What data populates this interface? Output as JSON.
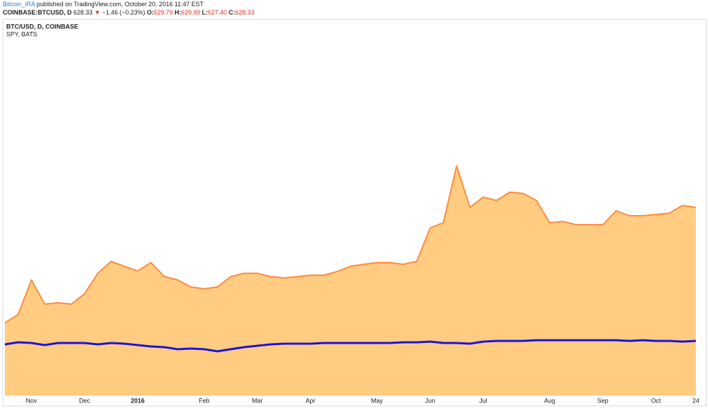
{
  "header": {
    "author": "Bitcoin_IRA",
    "published": "published on TradingView.com, October 20, 2016 11:47 EST",
    "symbol": "COINBASE:BTCUSD, D",
    "last": "628.33",
    "arrow": "▼",
    "change": "−1.46 (−0.23%)",
    "open_label": "O:",
    "open": "629.79",
    "high_label": "H:",
    "high": "629.99",
    "low_label": "L:",
    "low": "627.40",
    "close_label": "C:",
    "close": "628.33"
  },
  "chart_data": {
    "type": "area",
    "categories": [
      null,
      null,
      "Nov",
      null,
      null,
      null,
      "Dec",
      null,
      null,
      null,
      "2016",
      null,
      null,
      null,
      null,
      "Feb",
      null,
      null,
      null,
      "Mar",
      null,
      null,
      null,
      "Apr",
      null,
      null,
      null,
      null,
      "May",
      null,
      null,
      null,
      "Jun",
      null,
      null,
      null,
      "Jul",
      null,
      null,
      null,
      null,
      "Aug",
      null,
      null,
      null,
      "Sep",
      null,
      null,
      null,
      "Oct",
      null,
      null,
      "24"
    ],
    "ylim": [
      62,
      1194
    ],
    "y2lim": [
      42,
      1239
    ],
    "series": [
      {
        "name": "BTC/USD, D, COINBASE",
        "color": "#ff8a3d",
        "fill": "#ffcc82",
        "values": [
          281,
          306,
          410,
          337,
          341,
          337,
          368,
          430,
          466,
          451,
          437,
          462,
          420,
          410,
          389,
          383,
          389,
          420,
          430,
          430,
          420,
          416,
          420,
          424,
          424,
          435,
          451,
          457,
          462,
          462,
          457,
          466,
          566,
          582,
          753,
          628,
          659,
          649,
          674,
          670,
          649,
          582,
          586,
          576,
          576,
          576,
          618,
          603,
          603,
          607,
          611,
          634,
          628
        ]
      },
      {
        "name": "SPY, BATS",
        "color": "#1c12d6",
        "axis": "y2",
        "values": [
          204.8,
          211.4,
          209.2,
          202.6,
          209.2,
          209.2,
          209.2,
          204.8,
          209.2,
          207,
          202.6,
          198.2,
          196,
          189.4,
          191.6,
          189.4,
          182.8,
          189.4,
          196,
          200.4,
          204.8,
          207,
          207,
          207,
          209.2,
          209.2,
          209.2,
          209.2,
          209.2,
          209.2,
          211.4,
          211.4,
          213.6,
          209.2,
          209.2,
          207,
          213.6,
          215.8,
          215.8,
          215.8,
          218,
          218,
          218,
          218,
          218,
          218,
          218,
          215.8,
          218,
          215.8,
          215.8,
          213.6,
          215.8
        ]
      }
    ]
  }
}
